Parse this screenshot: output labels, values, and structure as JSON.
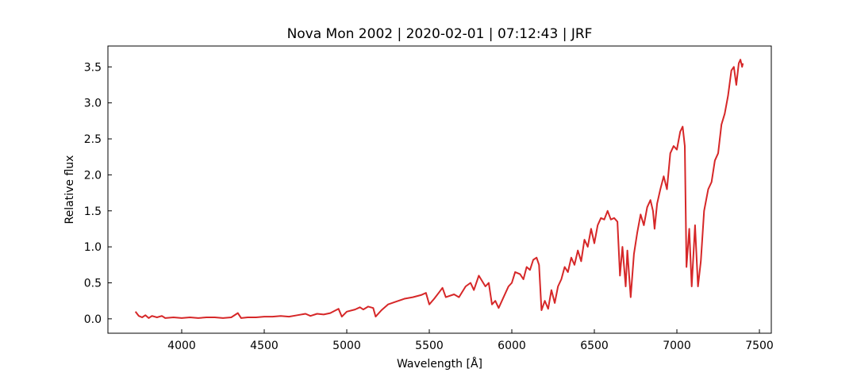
{
  "chart_data": {
    "type": "line",
    "title": "Nova Mon 2002 | 2020-02-01 | 07:12:43 | JRF",
    "xlabel": "Wavelength [Å]",
    "ylabel": "Relative flux",
    "color": "#d62728",
    "x": [
      3720,
      3740,
      3760,
      3780,
      3800,
      3820,
      3850,
      3880,
      3900,
      3950,
      4000,
      4050,
      4100,
      4150,
      4200,
      4250,
      4300,
      4340,
      4360,
      4400,
      4450,
      4500,
      4550,
      4600,
      4650,
      4700,
      4750,
      4780,
      4820,
      4860,
      4900,
      4950,
      4970,
      5000,
      5050,
      5080,
      5100,
      5130,
      5160,
      5175,
      5210,
      5250,
      5300,
      5350,
      5400,
      5450,
      5480,
      5500,
      5530,
      5560,
      5580,
      5600,
      5650,
      5680,
      5720,
      5750,
      5770,
      5800,
      5840,
      5860,
      5880,
      5900,
      5920,
      5950,
      5980,
      6000,
      6020,
      6050,
      6070,
      6090,
      6110,
      6130,
      6150,
      6165,
      6180,
      6200,
      6220,
      6240,
      6260,
      6280,
      6300,
      6320,
      6340,
      6360,
      6380,
      6400,
      6420,
      6440,
      6460,
      6480,
      6500,
      6520,
      6540,
      6560,
      6580,
      6600,
      6620,
      6640,
      6655,
      6670,
      6690,
      6700,
      6720,
      6740,
      6760,
      6780,
      6800,
      6820,
      6840,
      6855,
      6865,
      6880,
      6900,
      6920,
      6940,
      6960,
      6980,
      7000,
      7020,
      7035,
      7048,
      7058,
      7075,
      7090,
      7110,
      7128,
      7145,
      7165,
      7190,
      7210,
      7230,
      7250,
      7270,
      7290,
      7310,
      7330,
      7345,
      7360,
      7375,
      7385,
      7395,
      7400
    ],
    "values": [
      0.1,
      0.04,
      0.02,
      0.05,
      0.01,
      0.04,
      0.02,
      0.04,
      0.01,
      0.02,
      0.01,
      0.02,
      0.01,
      0.02,
      0.02,
      0.01,
      0.02,
      0.08,
      0.01,
      0.02,
      0.02,
      0.03,
      0.03,
      0.04,
      0.03,
      0.05,
      0.07,
      0.04,
      0.07,
      0.06,
      0.08,
      0.14,
      0.03,
      0.1,
      0.13,
      0.16,
      0.13,
      0.17,
      0.15,
      0.03,
      0.12,
      0.2,
      0.24,
      0.28,
      0.3,
      0.33,
      0.36,
      0.2,
      0.28,
      0.37,
      0.43,
      0.3,
      0.34,
      0.3,
      0.45,
      0.5,
      0.4,
      0.6,
      0.45,
      0.5,
      0.2,
      0.25,
      0.15,
      0.3,
      0.45,
      0.5,
      0.65,
      0.62,
      0.55,
      0.72,
      0.68,
      0.82,
      0.85,
      0.75,
      0.12,
      0.25,
      0.14,
      0.4,
      0.22,
      0.45,
      0.55,
      0.72,
      0.65,
      0.85,
      0.75,
      0.95,
      0.8,
      1.1,
      1.0,
      1.25,
      1.05,
      1.3,
      1.4,
      1.38,
      1.5,
      1.38,
      1.4,
      1.35,
      0.6,
      1.0,
      0.45,
      0.95,
      0.3,
      0.9,
      1.2,
      1.45,
      1.3,
      1.55,
      1.65,
      1.5,
      1.25,
      1.6,
      1.8,
      1.98,
      1.8,
      2.3,
      2.4,
      2.35,
      2.6,
      2.67,
      2.4,
      0.72,
      1.25,
      0.45,
      1.3,
      0.45,
      0.8,
      1.5,
      1.8,
      1.9,
      2.2,
      2.3,
      2.7,
      2.85,
      3.1,
      3.45,
      3.5,
      3.25,
      3.55,
      3.6,
      3.5,
      3.55
    ],
    "xlim": [
      3553,
      7572
    ],
    "ylim": [
      -0.2,
      3.79
    ],
    "xticks": [
      4000,
      4500,
      5000,
      5500,
      6000,
      6500,
      7000,
      7500
    ],
    "yticks": [
      {
        "value": 0,
        "label": "0.0"
      },
      0.5,
      {
        "value": 1,
        "label": "1.0"
      },
      1.5,
      {
        "value": 2,
        "label": "2.0"
      },
      2.5,
      {
        "value": 3,
        "label": "3.0"
      },
      3.5
    ]
  }
}
